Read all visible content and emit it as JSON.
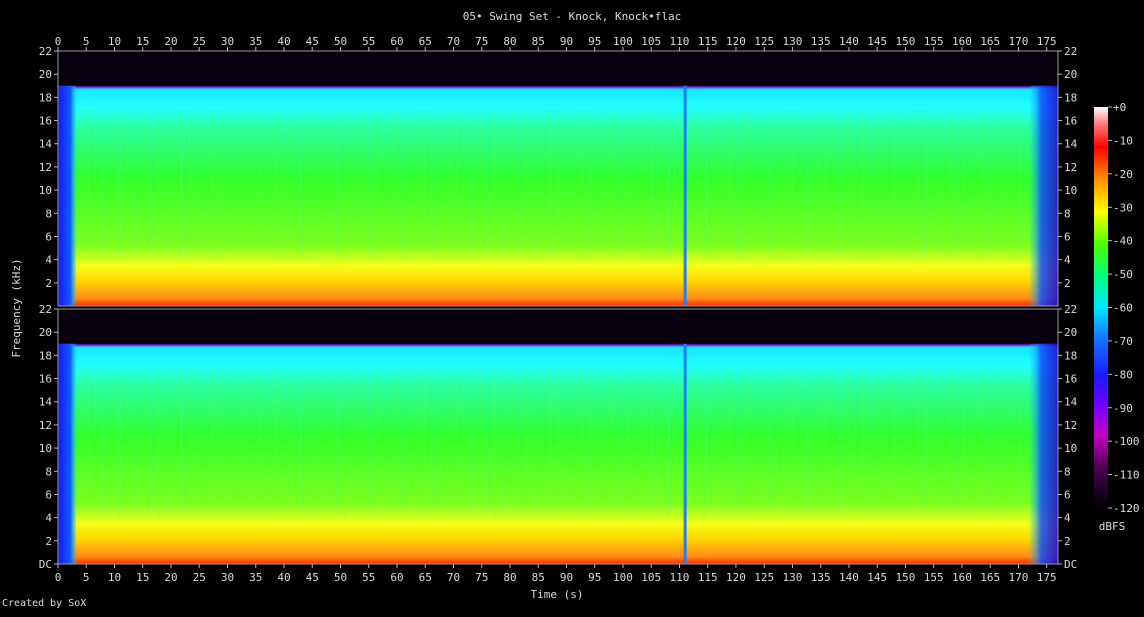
{
  "chart_data": {
    "type": "heatmap",
    "title": "05• Swing Set - Knock, Knock•flac",
    "xlabel": "Time (s)",
    "ylabel": "Frequency (kHz)",
    "xlim": [
      0,
      177
    ],
    "ylim": [
      0,
      22
    ],
    "x_ticks": [
      0,
      5,
      10,
      15,
      20,
      25,
      30,
      35,
      40,
      45,
      50,
      55,
      60,
      65,
      70,
      75,
      80,
      85,
      90,
      95,
      100,
      105,
      110,
      115,
      120,
      125,
      130,
      135,
      140,
      145,
      150,
      155,
      160,
      165,
      170,
      175
    ],
    "y_ticks": [
      "DC",
      2,
      4,
      6,
      8,
      10,
      12,
      14,
      16,
      18,
      20,
      22
    ],
    "channels": [
      "channel 1",
      "channel 2"
    ],
    "colorbar": {
      "label": "dBFS",
      "ticks": [
        "+0",
        "-10",
        "-20",
        "-30",
        "-40",
        "-50",
        "-60",
        "-70",
        "-80",
        "-90",
        "-100",
        "-110",
        "-120"
      ],
      "range": [
        -120,
        0
      ]
    },
    "grid": false,
    "lowpass_cutoff_khz": 19,
    "silent_gap_s": 111,
    "fade_in_end_s": 3.2,
    "fade_out_start_s": 172
  },
  "footer": "Created by SoX",
  "colors": {
    "background": "#000000",
    "text": "#dcdcdc"
  }
}
